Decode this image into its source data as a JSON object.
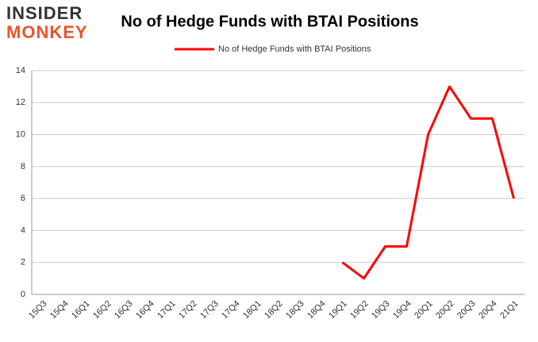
{
  "chart_data": {
    "type": "line",
    "title": "No of Hedge Funds with BTAI Positions",
    "logo_text": [
      "INSIDER",
      "MONKEY"
    ],
    "categories": [
      "15Q3",
      "15Q4",
      "16Q1",
      "16Q2",
      "16Q3",
      "16Q4",
      "17Q1",
      "17Q2",
      "17Q3",
      "17Q4",
      "18Q1",
      "18Q2",
      "18Q3",
      "18Q4",
      "19Q1",
      "19Q2",
      "19Q3",
      "19Q4",
      "20Q1",
      "20Q2",
      "20Q3",
      "20Q4",
      "21Q1"
    ],
    "series": [
      {
        "name": "No of Hedge Funds with BTAI Positions",
        "color": "#ff0000",
        "values": [
          null,
          null,
          null,
          null,
          null,
          null,
          null,
          null,
          null,
          null,
          null,
          null,
          null,
          null,
          2,
          1,
          3,
          3,
          10,
          13,
          11,
          11,
          6
        ]
      }
    ],
    "ylim": [
      0,
      14
    ],
    "yticks": [
      0,
      2,
      4,
      6,
      8,
      10,
      12,
      14
    ],
    "grid": true,
    "legend": "top"
  }
}
